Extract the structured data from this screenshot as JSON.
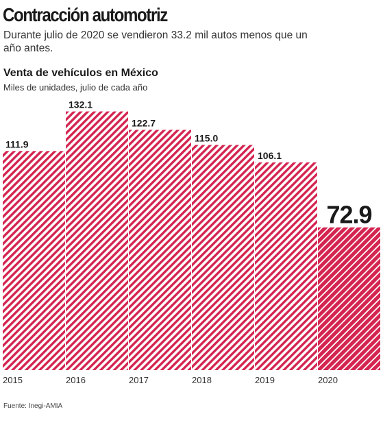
{
  "headline": "Contracción automotriz",
  "dek": "Durante julio de 2020 se vendieron 33.2 mil autos menos que un año antes.",
  "source": "Fuente: Inegi-AMIA",
  "colors": {
    "bar": "#d42450",
    "hatch_bg": "#ffffff",
    "highlight": "#d42450"
  },
  "chart_data": {
    "type": "bar",
    "title": "Venta de vehículos en México",
    "subtitle": "Miles de unidades, julio de cada año",
    "categories": [
      "2015",
      "2016",
      "2017",
      "2018",
      "2019",
      "2020"
    ],
    "values": [
      111.9,
      132.1,
      122.7,
      115.0,
      106.1,
      72.9
    ],
    "value_labels": [
      "111.9",
      "132.1",
      "122.7",
      "115.0",
      "106.1",
      "72.9"
    ],
    "highlight_index": 5,
    "ylim": [
      0,
      140
    ],
    "grid": false,
    "bar_fill": "diagonal hatch",
    "highlight_fill": "dense diagonal hatch"
  }
}
